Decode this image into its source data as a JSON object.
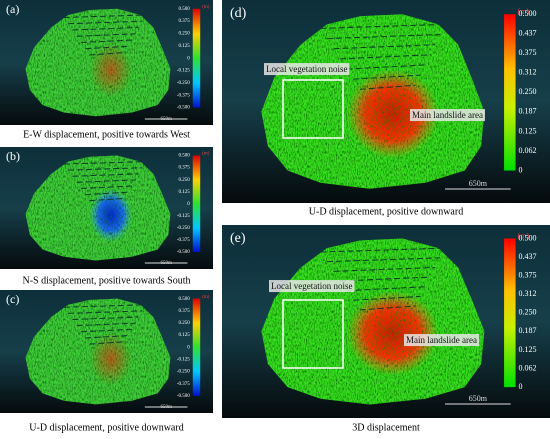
{
  "panels": [
    {
      "label": "(a)",
      "caption": "E-W displacement, positive towards West",
      "unit": "(m)",
      "scale": "650m",
      "ticks": [
        "0.500",
        "0.375",
        "0.250",
        "0.125",
        "0",
        "-0.125",
        "-0.250",
        "-0.375",
        "-0.500"
      ]
    },
    {
      "label": "(b)",
      "caption": "N-S displacement, positive towards South",
      "unit": "(m)",
      "scale": "650m",
      "ticks": [
        "0.500",
        "0.375",
        "0.250",
        "0.125",
        "0",
        "-0.125",
        "-0.250",
        "-0.375",
        "-0.500"
      ]
    },
    {
      "label": "(c)",
      "caption": "U-D displacement, positive downward",
      "unit": "(m)",
      "scale": "650m",
      "ticks": [
        "0.500",
        "0.375",
        "0.250",
        "0.125",
        "0",
        "-0.125",
        "-0.250",
        "-0.375",
        "-0.500"
      ]
    },
    {
      "label": "(d)",
      "caption": "U-D displacement, positive downward",
      "unit": "(m)",
      "scale": "650m",
      "ticks": [
        "0.500",
        "0.437",
        "0.375",
        "0.312",
        "0.250",
        "0.187",
        "0.125",
        "0.062",
        "0"
      ],
      "annotations": [
        "Local vegetation noise",
        "Main landslide area"
      ]
    },
    {
      "label": "(e)",
      "caption": "3D displacement",
      "unit": "(m)",
      "scale": "650m",
      "ticks": [
        "0.500",
        "0.437",
        "0.375",
        "0.312",
        "0.250",
        "0.187",
        "0.125",
        "0.062",
        "0"
      ],
      "annotations": [
        "Local vegetation noise",
        "Main landslide area"
      ]
    }
  ]
}
